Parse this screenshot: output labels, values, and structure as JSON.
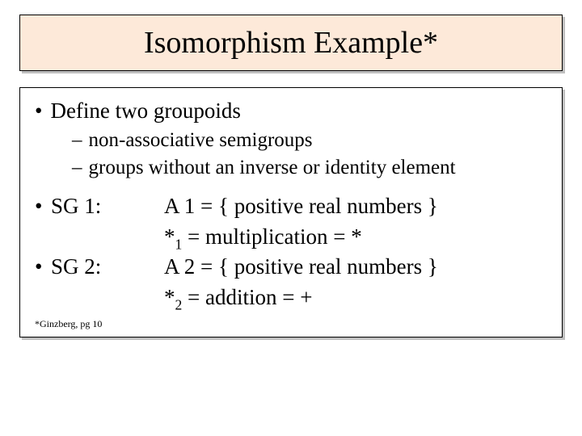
{
  "title": "Isomorphism Example*",
  "bullet1": "Define two groupoids",
  "sub1": "non-associative semigroups",
  "sub2": "groups without an inverse or identity element",
  "sg1_label": "SG 1:",
  "sg1_line1": "A 1 = { positive real numbers }",
  "sg1_line2_pre": "*",
  "sg1_line2_sub": "1",
  "sg1_line2_post": " = multiplication = *",
  "sg2_label": "SG 2:",
  "sg2_line1": "A 2 = { positive real numbers }",
  "sg2_line2_pre": "*",
  "sg2_line2_sub": "2",
  "sg2_line2_post": " = addition = +",
  "footnote": "*Ginzberg, pg 10",
  "colors": {
    "title_bg": "#fde9d9",
    "shadow": "#bfbfbf",
    "border": "#000000",
    "text": "#000000",
    "page_bg": "#ffffff"
  },
  "fonts": {
    "title_size_pt": 38,
    "body_size_pt": 27,
    "sub_size_pt": 25,
    "footnote_size_pt": 12,
    "family": "Times New Roman"
  }
}
